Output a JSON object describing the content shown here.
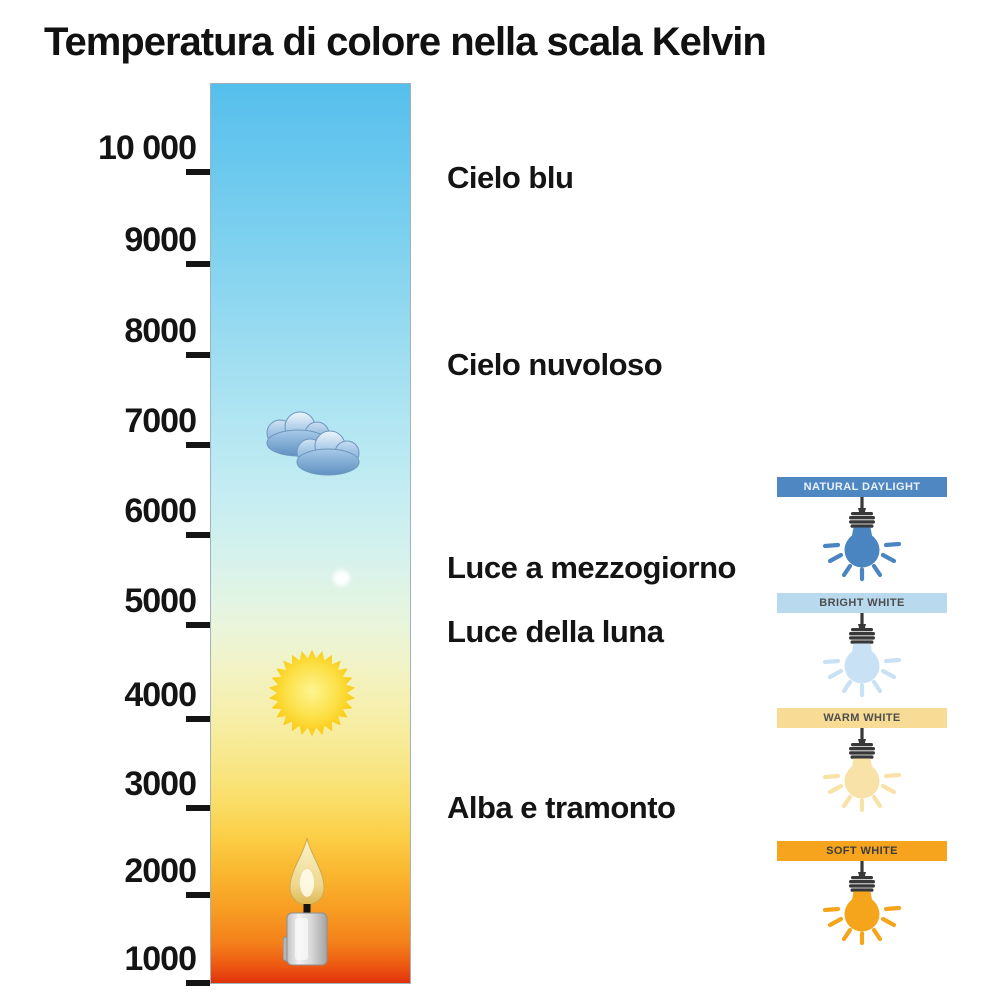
{
  "title": "Temperatura di colore nella scala Kelvin",
  "axis": {
    "unit": "Kelvin",
    "ticks": [
      {
        "value": 10000,
        "label": "10 000"
      },
      {
        "value": 9000,
        "label": "9000"
      },
      {
        "value": 8000,
        "label": "8000"
      },
      {
        "value": 7000,
        "label": "7000"
      },
      {
        "value": 6000,
        "label": "6000"
      },
      {
        "value": 5000,
        "label": "5000"
      },
      {
        "value": 4000,
        "label": "4000"
      },
      {
        "value": 3000,
        "label": "3000"
      },
      {
        "value": 2000,
        "label": "2000"
      },
      {
        "value": 1000,
        "label": "1000"
      }
    ]
  },
  "annotations": [
    {
      "label": "Cielo blu",
      "kelvin": 10000
    },
    {
      "label": "Cielo nuvoloso",
      "kelvin": 8000
    },
    {
      "label": "Luce a mezzogiorno",
      "kelvin": 5600
    },
    {
      "label": "Luce della luna",
      "kelvin": 4900
    },
    {
      "label": "Alba e tramonto",
      "kelvin": 3000
    }
  ],
  "icons": [
    "clouds-icon",
    "moon-icon",
    "sun-icon",
    "candle-icon",
    "bulb-icon"
  ],
  "bulb_legend": [
    {
      "label": "NATURAL DAYLIGHT",
      "banner_color": "#4e87c2",
      "bulb_color": "#4a85c2",
      "label_color": "#e9f1f9"
    },
    {
      "label": "BRIGHT WHITE",
      "banner_color": "#b8d9ee",
      "bulb_color": "#c8e1f5",
      "label_color": "#4d4d4d"
    },
    {
      "label": "WARM WHITE",
      "banner_color": "#f8dc96",
      "bulb_color": "#f9e2a8",
      "label_color": "#4d4d4d"
    },
    {
      "label": "SOFT WHITE",
      "banner_color": "#f6a41e",
      "bulb_color": "#f4a51c",
      "label_color": "#3c3c3c"
    }
  ],
  "bar_gradient": [
    [
      "0%",
      "#55bfec"
    ],
    [
      "8%",
      "#68c7ee"
    ],
    [
      "18%",
      "#7fd1ef"
    ],
    [
      "28%",
      "#99dbf0"
    ],
    [
      "38%",
      "#b2e6f2"
    ],
    [
      "45%",
      "#c3ecf2"
    ],
    [
      "50%",
      "#cff0ef"
    ],
    [
      "55%",
      "#dcf3e9"
    ],
    [
      "60%",
      "#e9f5dc"
    ],
    [
      "65%",
      "#f2f3c5"
    ],
    [
      "70%",
      "#f6efab"
    ],
    [
      "75%",
      "#f8e88c"
    ],
    [
      "80%",
      "#fadd66"
    ],
    [
      "84%",
      "#fbcd44"
    ],
    [
      "88%",
      "#fab52e"
    ],
    [
      "92%",
      "#f79c22"
    ],
    [
      "95.5%",
      "#f4801b"
    ],
    [
      "98%",
      "#ee5a12"
    ],
    [
      "100%",
      "#e1310c"
    ]
  ],
  "bulb_base_color": "#383838"
}
